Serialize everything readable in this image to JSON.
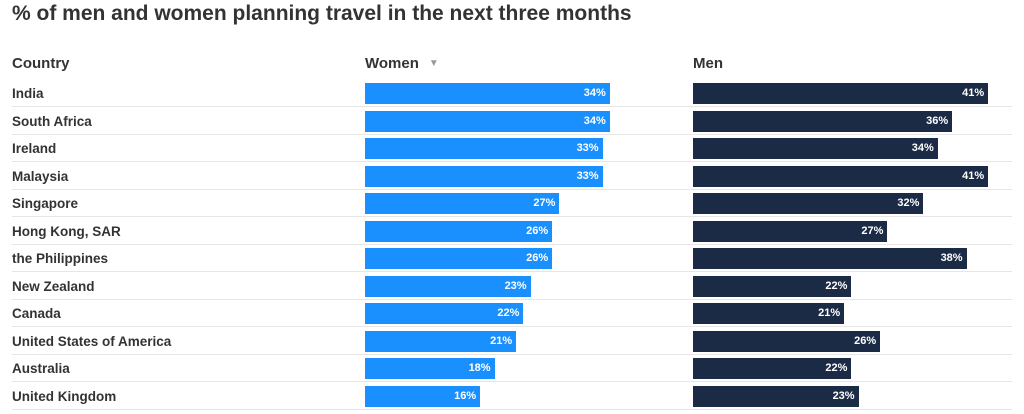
{
  "title": "% of men and women planning travel in the next three months",
  "headers": {
    "country": "Country",
    "women": "Women",
    "men": "Men"
  },
  "sort_icon": "sort-descending-triangle-icon",
  "colors": {
    "women": "#1a90ff",
    "men": "#1b2b45"
  },
  "chart_data": {
    "type": "bar",
    "orientation": "horizontal",
    "title": "% of men and women planning travel in the next three months",
    "categories": [
      "India",
      "South Africa",
      "Ireland",
      "Malaysia",
      "Singapore",
      "Hong Kong, SAR",
      "the Philippines",
      "New Zealand",
      "Canada",
      "United States of America",
      "Australia",
      "United Kingdom"
    ],
    "series": [
      {
        "name": "Women",
        "values": [
          34,
          34,
          33,
          33,
          27,
          26,
          26,
          23,
          22,
          21,
          18,
          16
        ]
      },
      {
        "name": "Men",
        "values": [
          41,
          36,
          34,
          41,
          32,
          27,
          38,
          22,
          21,
          26,
          22,
          23
        ]
      }
    ],
    "value_labels": {
      "Women": [
        "34%",
        "34%",
        "33%",
        "33%",
        "27%",
        "26%",
        "26%",
        "23%",
        "22%",
        "21%",
        "18%",
        "16%"
      ],
      "Men": [
        "41%",
        "36%",
        "34%",
        "41%",
        "32%",
        "27%",
        "38%",
        "22%",
        "21%",
        "26%",
        "22%",
        "23%"
      ]
    },
    "sorted_by": "Women",
    "grid": false,
    "legend": "none"
  }
}
